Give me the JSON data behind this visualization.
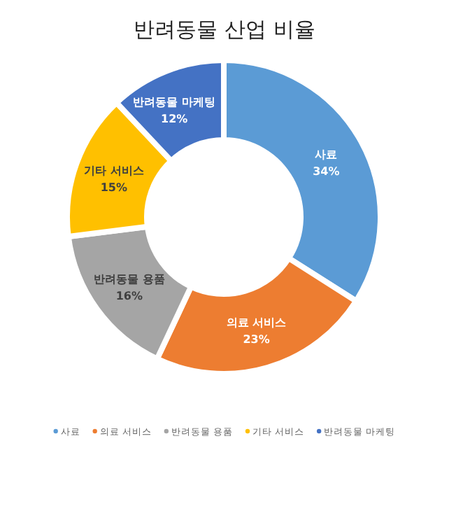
{
  "chart_data": {
    "type": "donut",
    "title": "반려동물 산업 비율",
    "categories": [
      "사료",
      "의료 서비스",
      "반려동물 용품",
      "기타 서비스",
      "반려동물 마케팅"
    ],
    "values": [
      34,
      23,
      16,
      15,
      12
    ],
    "colors": [
      "#5b9bd5",
      "#ed7d31",
      "#a5a5a5",
      "#ffc000",
      "#4472c4"
    ],
    "value_labels": [
      "34%",
      "23%",
      "16%",
      "15%",
      "12%"
    ],
    "legend": "bottom"
  }
}
